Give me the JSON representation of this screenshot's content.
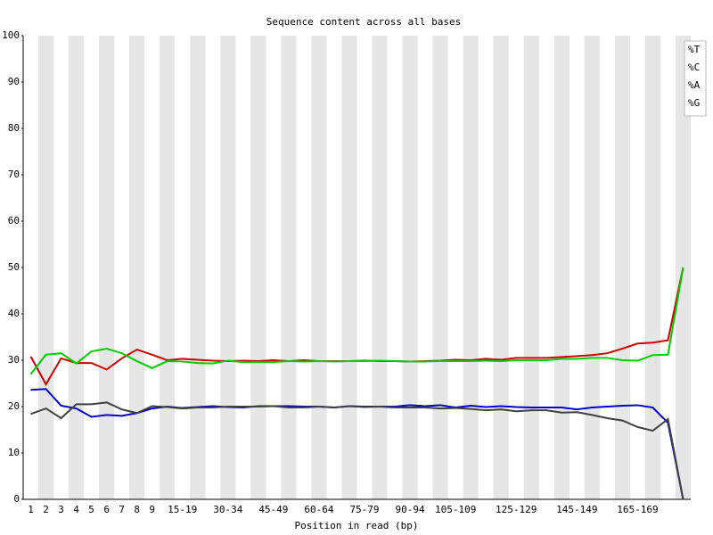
{
  "chart_data": {
    "type": "line",
    "title": "Sequence content across all bases",
    "xlabel": "Position in read (bp)",
    "categories": [
      "1",
      "2",
      "3",
      "4",
      "5",
      "6",
      "7",
      "8",
      "9",
      null,
      "15-19",
      null,
      null,
      "30-34",
      null,
      null,
      "45-49",
      null,
      null,
      "60-64",
      null,
      null,
      "75-79",
      null,
      null,
      "90-94",
      null,
      null,
      "105-109",
      null,
      null,
      null,
      "125-129",
      null,
      null,
      null,
      "145-149",
      null,
      null,
      null,
      "165-169",
      null,
      null,
      null
    ],
    "series": [
      {
        "name": "%T",
        "color": "#cc0000",
        "values": [
          30.8,
          24.8,
          30.4,
          29.4,
          29.4,
          28.0,
          30.4,
          32.3,
          31.2,
          30.0,
          30.3,
          30.1,
          29.9,
          29.8,
          29.9,
          29.8,
          30.0,
          29.8,
          30.0,
          29.8,
          29.8,
          29.8,
          29.9,
          29.8,
          29.8,
          29.7,
          29.8,
          29.9,
          30.1,
          30.0,
          30.3,
          30.1,
          30.5,
          30.5,
          30.5,
          30.7,
          30.9,
          31.1,
          31.5,
          32.5,
          33.6,
          33.8,
          34.3,
          50
        ]
      },
      {
        "name": "%C",
        "color": "#0000cc",
        "values": [
          23.6,
          23.8,
          20.2,
          19.6,
          17.8,
          18.2,
          18.0,
          18.6,
          19.6,
          20.0,
          19.7,
          19.9,
          20.1,
          19.9,
          19.8,
          20.1,
          20.1,
          20.1,
          20.0,
          20.0,
          19.8,
          20.1,
          20.0,
          20.0,
          20.0,
          20.3,
          20.1,
          20.3,
          19.8,
          20.2,
          19.9,
          20.1,
          19.9,
          19.8,
          19.8,
          19.8,
          19.4,
          19.8,
          20.0,
          20.2,
          20.3,
          19.8,
          16.5,
          0
        ]
      },
      {
        "name": "%A",
        "color": "#00cc00",
        "values": [
          27.0,
          31.2,
          31.5,
          29.3,
          31.9,
          32.5,
          31.5,
          29.8,
          28.3,
          29.8,
          29.7,
          29.4,
          29.3,
          29.9,
          29.6,
          29.6,
          29.6,
          29.8,
          29.7,
          29.8,
          29.7,
          29.8,
          29.8,
          29.9,
          29.8,
          29.7,
          29.7,
          29.8,
          29.8,
          29.8,
          29.9,
          29.8,
          30.0,
          30.0,
          30.0,
          30.3,
          30.3,
          30.5,
          30.5,
          30.0,
          29.9,
          31.1,
          31.2,
          50
        ]
      },
      {
        "name": "%G",
        "color": "#404040",
        "values": [
          18.4,
          19.6,
          17.5,
          20.5,
          20.5,
          20.9,
          19.4,
          18.6,
          20.1,
          19.9,
          19.6,
          19.8,
          19.8,
          20.0,
          20.0,
          20.0,
          20.1,
          19.8,
          19.8,
          20.0,
          19.8,
          20.1,
          19.9,
          20.0,
          19.8,
          19.8,
          19.8,
          19.6,
          19.7,
          19.5,
          19.2,
          19.4,
          19.0,
          19.2,
          19.2,
          18.7,
          18.8,
          18.2,
          17.5,
          17.0,
          15.6,
          14.8,
          17.3,
          0
        ]
      }
    ],
    "ylim": [
      0,
      100
    ],
    "yticks": [
      0,
      10,
      20,
      30,
      40,
      50,
      60,
      70,
      80,
      90,
      100
    ],
    "legend": "upper right"
  }
}
